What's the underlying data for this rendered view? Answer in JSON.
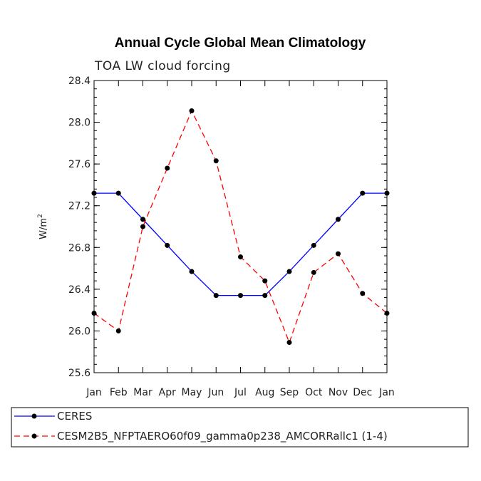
{
  "chart_data": {
    "type": "line",
    "title": "Annual Cycle Global Mean Climatology",
    "subtitle": "TOA LW cloud forcing",
    "xlabel": "",
    "ylabel": "W/m",
    "ylabel_superscript": "2",
    "categories": [
      "Jan",
      "Feb",
      "Mar",
      "Apr",
      "May",
      "Jun",
      "Jul",
      "Aug",
      "Sep",
      "Oct",
      "Nov",
      "Dec",
      "Jan"
    ],
    "ylim": [
      25.6,
      28.4
    ],
    "yticks": [
      25.6,
      26.0,
      26.4,
      26.8,
      27.2,
      27.6,
      28.0,
      28.4
    ],
    "ytick_labels": [
      "25.6",
      "26.0",
      "26.4",
      "26.8",
      "27.2",
      "27.6",
      "28.0",
      "28.4"
    ],
    "series": [
      {
        "name": "CERES",
        "color": "#0000ff",
        "dash": "solid",
        "values": [
          27.32,
          27.32,
          27.07,
          26.82,
          26.57,
          26.34,
          26.34,
          26.34,
          26.57,
          26.82,
          27.07,
          27.32,
          27.32
        ]
      },
      {
        "name": "CESM2B5_NFPTAERO60f09_gamma0p238_AMCORRallc1 (1-4)",
        "color": "#ff0000",
        "dash": "dashed",
        "values": [
          26.17,
          26.0,
          27.0,
          27.56,
          28.11,
          27.63,
          26.71,
          26.48,
          25.89,
          26.56,
          26.74,
          26.36,
          26.17
        ]
      }
    ],
    "legend_position": "bottom-left"
  }
}
